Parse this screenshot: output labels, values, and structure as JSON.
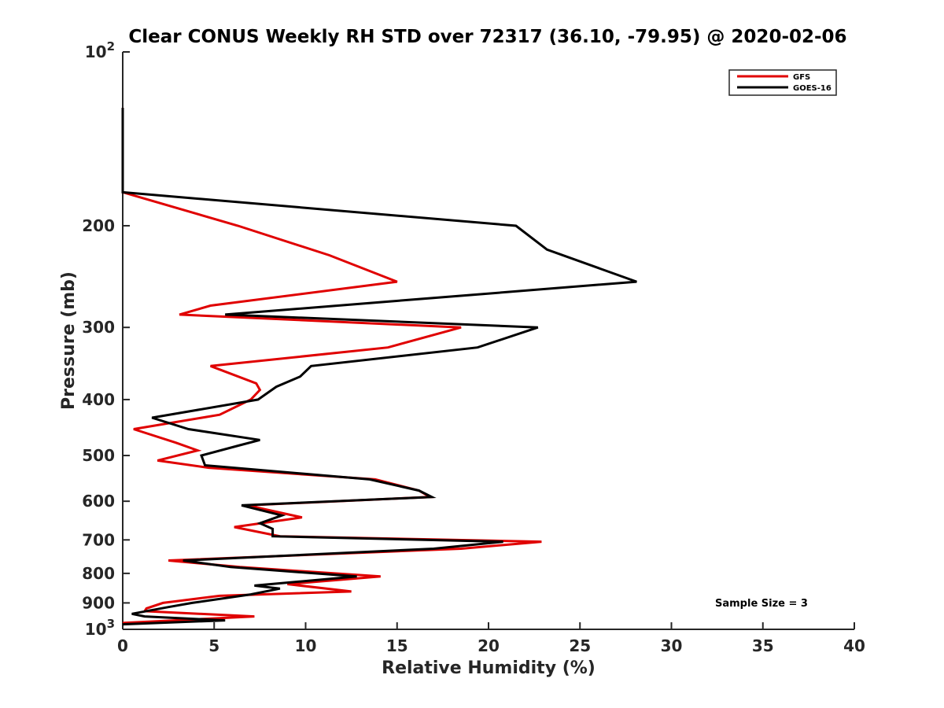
{
  "chart_data": {
    "type": "line",
    "title": "Clear CONUS Weekly RH STD over 72317 (36.10, -79.95) @ 2020-02-06",
    "xlabel": "Relative Humidity (%)",
    "ylabel": "Pressure (mb)",
    "xlim": [
      0,
      40
    ],
    "ylim": [
      100,
      1000
    ],
    "y_scale": "log",
    "y_reversed": true,
    "grid": false,
    "legend_placement": "top-right",
    "x_ticks": [
      "0",
      "5",
      "10",
      "15",
      "20",
      "25",
      "30",
      "35",
      "40"
    ],
    "y_ticks": [
      {
        "value": 100,
        "base": "10",
        "exp": "2"
      },
      {
        "value": 200,
        "label": "200"
      },
      {
        "value": 300,
        "label": "300"
      },
      {
        "value": 400,
        "label": "400"
      },
      {
        "value": 500,
        "label": "500"
      },
      {
        "value": 600,
        "label": "600"
      },
      {
        "value": 700,
        "label": "700"
      },
      {
        "value": 800,
        "label": "800"
      },
      {
        "value": 900,
        "label": "900"
      },
      {
        "value": 1000,
        "base": "10",
        "exp": "3"
      }
    ],
    "series": [
      {
        "name": "GFS",
        "color": "#e00000",
        "points": [
          [
            0,
            125
          ],
          [
            0,
            150
          ],
          [
            0,
            175
          ],
          [
            6.3,
            200
          ],
          [
            11.3,
            225
          ],
          [
            15,
            250
          ],
          [
            4.8,
            275
          ],
          [
            3.1,
            285
          ],
          [
            18.5,
            300
          ],
          [
            14.5,
            325
          ],
          [
            4.8,
            350
          ],
          [
            7.3,
            375
          ],
          [
            7.5,
            385
          ],
          [
            7.0,
            400
          ],
          [
            5.3,
            425
          ],
          [
            0.6,
            450
          ],
          [
            2.9,
            475
          ],
          [
            4.1,
            490
          ],
          [
            1.9,
            510
          ],
          [
            4.7,
            525
          ],
          [
            13.8,
            550
          ],
          [
            16.2,
            575
          ],
          [
            16.8,
            590
          ],
          [
            6.8,
            610
          ],
          [
            9.8,
            640
          ],
          [
            6.1,
            665
          ],
          [
            8.6,
            690
          ],
          [
            22.9,
            705
          ],
          [
            18.5,
            725
          ],
          [
            2.5,
            760
          ],
          [
            6.4,
            780
          ],
          [
            14.1,
            810
          ],
          [
            9.0,
            835
          ],
          [
            12.5,
            860
          ],
          [
            5.3,
            875
          ],
          [
            2.2,
            900
          ],
          [
            1.3,
            920
          ],
          [
            1.2,
            930
          ],
          [
            7.2,
            950
          ],
          [
            0,
            975
          ]
        ]
      },
      {
        "name": "GOES-16",
        "color": "#000000",
        "points": [
          [
            0,
            125
          ],
          [
            0,
            150
          ],
          [
            0,
            175
          ],
          [
            21.5,
            200
          ],
          [
            23.2,
            220
          ],
          [
            28.1,
            250
          ],
          [
            5.6,
            285
          ],
          [
            22.7,
            300
          ],
          [
            19.4,
            325
          ],
          [
            10.3,
            350
          ],
          [
            9.7,
            365
          ],
          [
            8.4,
            380
          ],
          [
            7.4,
            400
          ],
          [
            1.6,
            430
          ],
          [
            3.6,
            450
          ],
          [
            7.5,
            470
          ],
          [
            6.4,
            480
          ],
          [
            4.3,
            500
          ],
          [
            4.5,
            520
          ],
          [
            13.5,
            550
          ],
          [
            16.2,
            575
          ],
          [
            16.9,
            590
          ],
          [
            6.5,
            610
          ],
          [
            8.7,
            635
          ],
          [
            7.5,
            655
          ],
          [
            8.2,
            670
          ],
          [
            8.2,
            690
          ],
          [
            20.8,
            705
          ],
          [
            17.0,
            725
          ],
          [
            3.3,
            760
          ],
          [
            5.9,
            780
          ],
          [
            12.8,
            810
          ],
          [
            7.2,
            840
          ],
          [
            8.6,
            850
          ],
          [
            7.0,
            870
          ],
          [
            3.8,
            900
          ],
          [
            2.5,
            915
          ],
          [
            0.5,
            940
          ],
          [
            1.2,
            950
          ],
          [
            5.6,
            965
          ],
          [
            0,
            980
          ]
        ]
      }
    ],
    "annotations": [
      "Sample Size = 3"
    ]
  }
}
